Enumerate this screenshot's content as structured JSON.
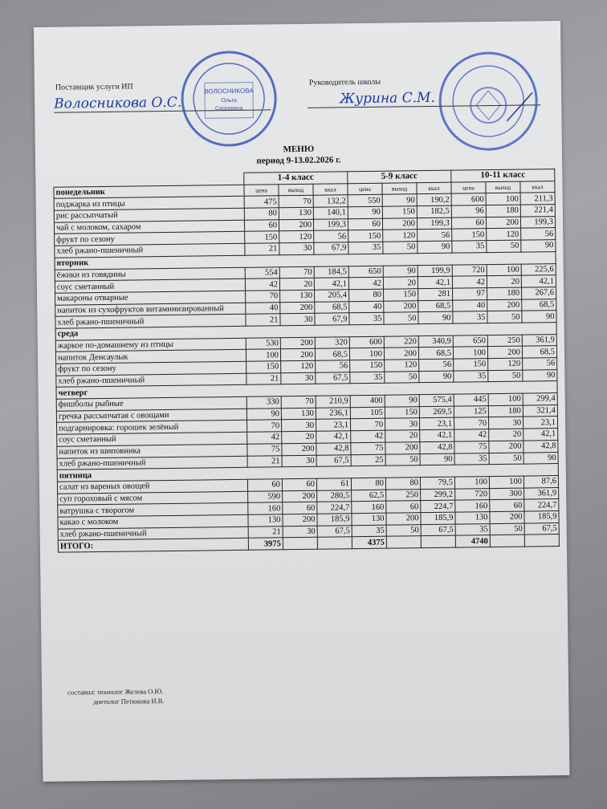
{
  "header": {
    "supplier_label": "Поставщик услуги ИП",
    "supplier_signature": "Волосникова О.С.",
    "supplier_stamp_text": "ВОЛОСНИКОВА Ольга Сергеевна",
    "director_label": "Руководитель школы",
    "director_signature": "Журина С.М.",
    "title": "МЕНЮ",
    "period": "период 9-13.02.2026 г."
  },
  "stamp_colors": {
    "ink": "#2f4fb8"
  },
  "table": {
    "groups": [
      "1-4 класс",
      "5-9 класс",
      "10-11 класс"
    ],
    "subheaders": [
      "цена",
      "выход",
      "ккал"
    ],
    "days": [
      {
        "name": "понедельник",
        "items": [
          {
            "dish": "поджарка из птицы",
            "values": [
              "475",
              "70",
              "132,2",
              "550",
              "90",
              "190,2",
              "600",
              "100",
              "211,3"
            ]
          },
          {
            "dish": "рис рассыпчатый",
            "values": [
              "80",
              "130",
              "140,1",
              "90",
              "150",
              "182,5",
              "96",
              "180",
              "221,4"
            ]
          },
          {
            "dish": "чай с молоком, сахаром",
            "values": [
              "60",
              "200",
              "199,3",
              "60",
              "200",
              "199,3",
              "60",
              "200",
              "199,3"
            ]
          },
          {
            "dish": "фрукт по сезону",
            "values": [
              "150",
              "120",
              "56",
              "150",
              "120",
              "56",
              "150",
              "120",
              "56"
            ]
          },
          {
            "dish": "хлеб ржано-пшеничный",
            "values": [
              "21",
              "30",
              "67,9",
              "35",
              "50",
              "90",
              "35",
              "50",
              "90"
            ]
          }
        ]
      },
      {
        "name": "вторник",
        "items": [
          {
            "dish": "ёжики из говядины",
            "values": [
              "554",
              "70",
              "184,5",
              "650",
              "90",
              "199,9",
              "720",
              "100",
              "225,6"
            ]
          },
          {
            "dish": "соус сметанный",
            "values": [
              "42",
              "20",
              "42,1",
              "42",
              "20",
              "42,1",
              "42",
              "20",
              "42,1"
            ]
          },
          {
            "dish": "макароны отварные",
            "values": [
              "70",
              "130",
              "205,4",
              "80",
              "150",
              "281",
              "97",
              "180",
              "267,6"
            ]
          },
          {
            "dish": "напиток из сухофруктов витаминизированный",
            "values": [
              "40",
              "200",
              "68,5",
              "40",
              "200",
              "68,5",
              "40",
              "200",
              "68,5"
            ]
          },
          {
            "dish": "хлеб ржано-пшеничный",
            "values": [
              "21",
              "30",
              "67,9",
              "35",
              "50",
              "90",
              "35",
              "50",
              "90"
            ]
          }
        ]
      },
      {
        "name": "среда",
        "items": [
          {
            "dish": "жаркое по-домашнему из птицы",
            "values": [
              "530",
              "200",
              "320",
              "600",
              "220",
              "340,9",
              "650",
              "250",
              "361,9"
            ]
          },
          {
            "dish": "напиток Денсаулык",
            "values": [
              "100",
              "200",
              "68,5",
              "100",
              "200",
              "68,5",
              "100",
              "200",
              "68,5"
            ]
          },
          {
            "dish": "фрукт по сезону",
            "values": [
              "150",
              "120",
              "56",
              "150",
              "120",
              "56",
              "150",
              "120",
              "56"
            ]
          },
          {
            "dish": "хлеб ржано-пшеничный",
            "values": [
              "21",
              "30",
              "67,5",
              "35",
              "50",
              "90",
              "35",
              "50",
              "90"
            ]
          }
        ]
      },
      {
        "name": "четверг",
        "items": [
          {
            "dish": "фишболы рыбные",
            "values": [
              "330",
              "70",
              "210,9",
              "400",
              "90",
              "575,4",
              "445",
              "100",
              "299,4"
            ]
          },
          {
            "dish": "гречка рассыпчатая с овощами",
            "values": [
              "90",
              "130",
              "236,1",
              "105",
              "150",
              "269,5",
              "125",
              "180",
              "321,4"
            ]
          },
          {
            "dish": "подгарнировка: горошек зелёный",
            "values": [
              "70",
              "30",
              "23,1",
              "70",
              "30",
              "23,1",
              "70",
              "30",
              "23,1"
            ]
          },
          {
            "dish": "соус сметанный",
            "values": [
              "42",
              "20",
              "42,1",
              "42",
              "20",
              "42,1",
              "42",
              "20",
              "42,1"
            ]
          },
          {
            "dish": "напиток из шиповника",
            "values": [
              "75",
              "200",
              "42,8",
              "75",
              "200",
              "42,8",
              "75",
              "200",
              "42,8"
            ]
          },
          {
            "dish": "хлеб ржано-пшеничный",
            "values": [
              "21",
              "30",
              "67,5",
              "25",
              "50",
              "90",
              "35",
              "50",
              "90"
            ]
          }
        ]
      },
      {
        "name": "пятница",
        "items": [
          {
            "dish": "салат из вареных овощей",
            "values": [
              "60",
              "60",
              "61",
              "80",
              "80",
              "79,5",
              "100",
              "100",
              "87,6"
            ]
          },
          {
            "dish": "суп гороховый с мясом",
            "values": [
              "590",
              "200",
              "280,5",
              "62,5",
              "250",
              "299,2",
              "720",
              "300",
              "361,9"
            ]
          },
          {
            "dish": "ватрушка с творогом",
            "values": [
              "160",
              "60",
              "224,7",
              "160",
              "60",
              "224,7",
              "160",
              "60",
              "224,7"
            ]
          },
          {
            "dish": "какао с молоком",
            "values": [
              "130",
              "200",
              "185,9",
              "130",
              "200",
              "185,9",
              "130",
              "200",
              "185,9"
            ]
          },
          {
            "dish": "хлеб ржано-пшеничный",
            "values": [
              "21",
              "30",
              "67,5",
              "35",
              "50",
              "67,5",
              "35",
              "50",
              "67,5"
            ]
          }
        ]
      }
    ],
    "total": {
      "label": "ИТОГО:",
      "values": [
        "3975",
        "",
        "",
        "4375",
        "",
        "",
        "4740",
        "",
        ""
      ]
    }
  },
  "footer": {
    "composed_by": "составил: технолог Желева О.Ю.",
    "dietitian": "диетолог Петюкова И.В."
  }
}
